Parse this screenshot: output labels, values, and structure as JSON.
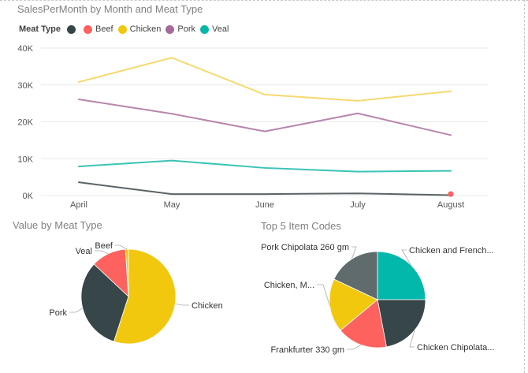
{
  "colors": {
    "Beef": "#fd625e",
    "Chicken": "#f2c80f",
    "Pork": "#a66999",
    "Veal": "#01b8aa",
    "Other": "#374649",
    "Gray": "#5f6b6d",
    "lineChicken": "#f4da70",
    "linePork": "#b886ad",
    "lineVeal": "#3cc3b7",
    "lineOther": "#5a6466"
  },
  "chart_data": [
    {
      "type": "line",
      "title": "SalesPerMonth by Month and Meat Type",
      "legend_title": "Meat Type",
      "legend_placement": "top-left",
      "legend": [
        "",
        "Beef",
        "Chicken",
        "Pork",
        "Veal"
      ],
      "categories": [
        "April",
        "May",
        "June",
        "July",
        "August"
      ],
      "y_ticks": [
        "0K",
        "10K",
        "20K",
        "30K",
        "40K"
      ],
      "ylim": [
        0,
        40000
      ],
      "grid": true,
      "series": [
        {
          "key": "Chicken",
          "values": [
            30800,
            37400,
            27400,
            25700,
            28300
          ]
        },
        {
          "key": "Pork",
          "values": [
            26100,
            22200,
            17400,
            22300,
            16400
          ]
        },
        {
          "key": "Veal",
          "values": [
            7900,
            9500,
            7500,
            6500,
            6700
          ]
        },
        {
          "key": "Other",
          "values": [
            3600,
            400,
            400,
            600,
            100
          ]
        },
        {
          "key": "Beef",
          "values": [
            null,
            null,
            null,
            null,
            400
          ]
        }
      ]
    },
    {
      "type": "pie",
      "title": "Value by Meat Type",
      "slices": [
        {
          "label": "Chicken",
          "key": "Chicken",
          "value": 55
        },
        {
          "label": "Pork",
          "key": "Other",
          "value": 32
        },
        {
          "label": "Veal",
          "key": "Beef",
          "value": 12
        },
        {
          "label": "Beef",
          "key": "Chicken",
          "value": 1
        }
      ]
    },
    {
      "type": "pie",
      "title": "Top 5 Item Codes",
      "slices": [
        {
          "label": "Chicken and French...",
          "key": "Veal",
          "value": 25
        },
        {
          "label": "Chicken Chipolata...",
          "key": "Other",
          "value": 22
        },
        {
          "label": "Frankfurter 330 gm",
          "key": "Beef",
          "value": 17
        },
        {
          "label": "Chicken, M...",
          "key": "Chicken",
          "value": 18
        },
        {
          "label": "Pork Chipolata 260 gm",
          "key": "Gray",
          "value": 18
        }
      ]
    }
  ]
}
